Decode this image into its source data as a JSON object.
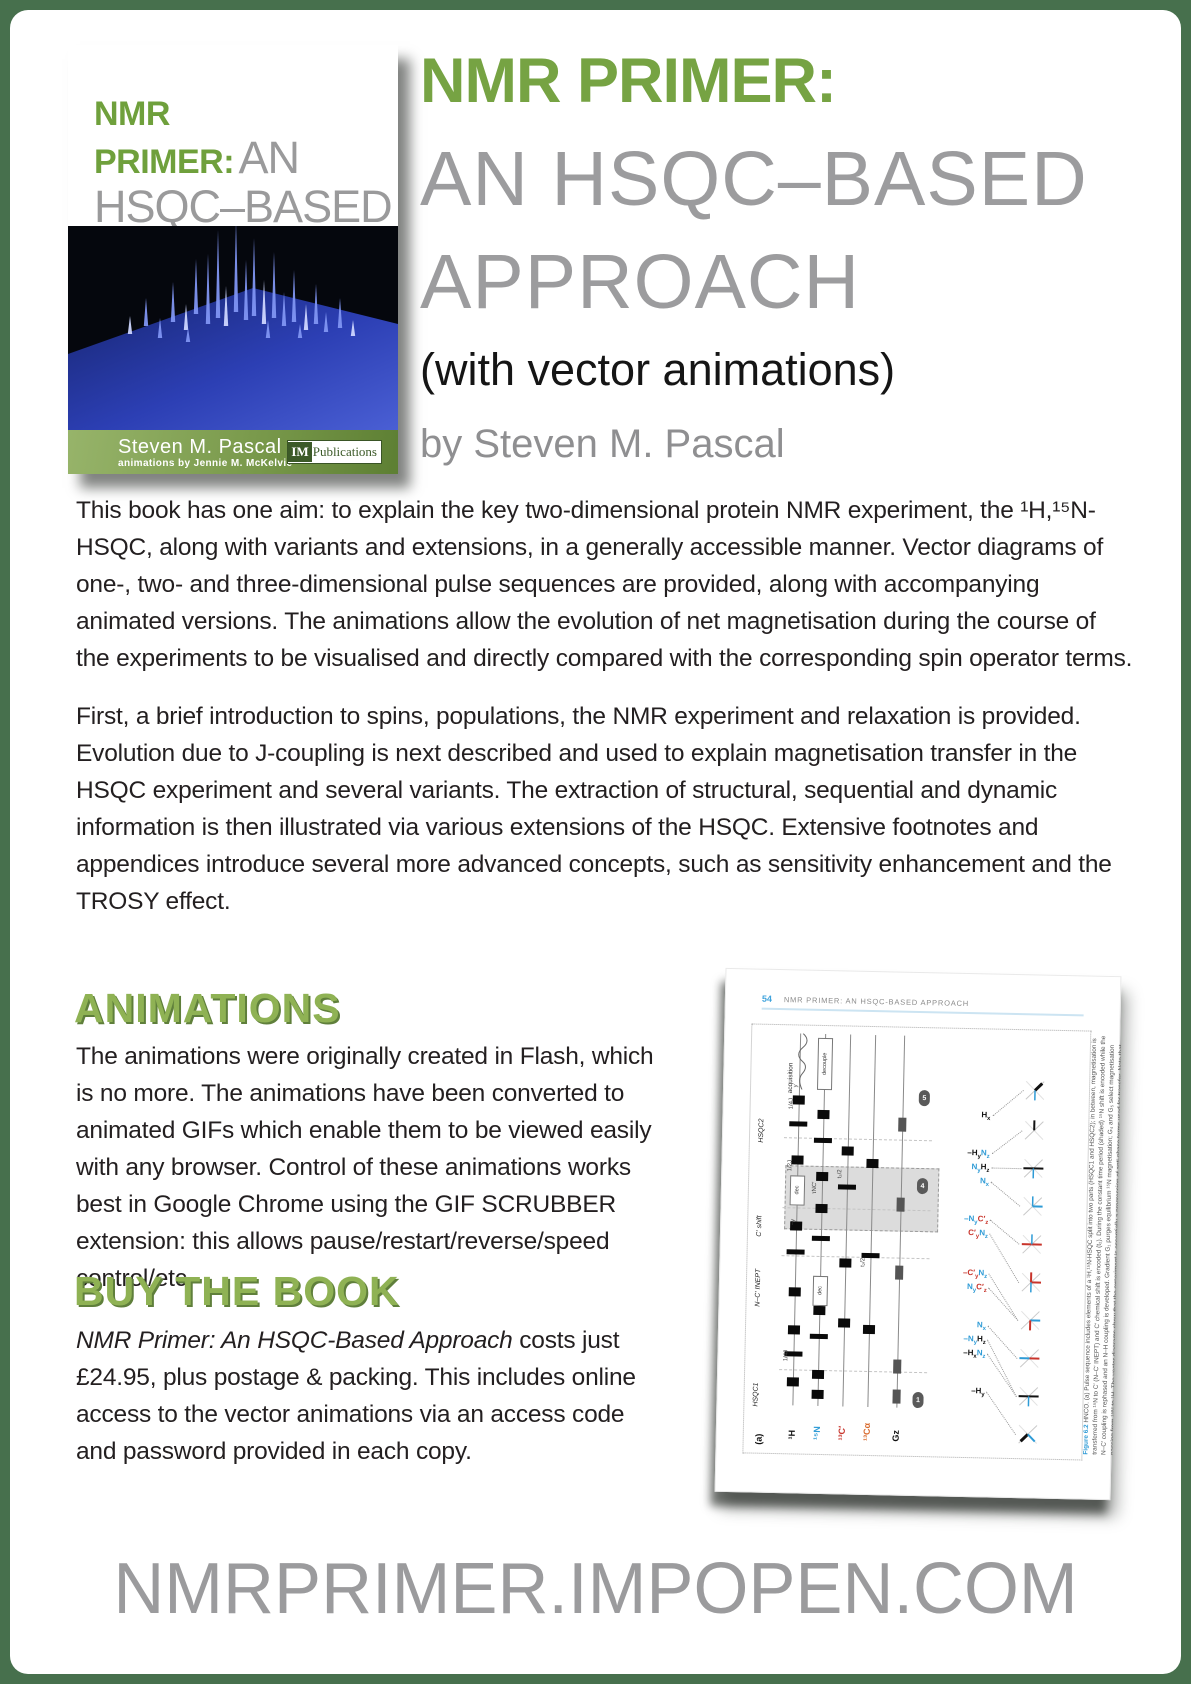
{
  "frame_color": "#47704D",
  "cover": {
    "title_green_1": "NMR",
    "title_green_2": "PRIMER:",
    "title_gray_an": "AN",
    "title_gray_1": "HSQC–BASED",
    "title_gray_2": "APPROACH",
    "subtitle": "WITH VECTOR ANIMATIONS",
    "author": "Steven M. Pascal",
    "credit": "animations by Jennie M. McKelvie",
    "publisher_initials": "IM",
    "publisher_name": "Publications"
  },
  "title_block": {
    "line1": "NMR PRIMER:",
    "line2": "AN HSQC–BASED",
    "line3": "APPROACH",
    "line4": "(with vector animations)",
    "line5": "by Steven M. Pascal"
  },
  "intro_paragraphs": [
    "This book has one aim: to explain the key two-dimensional protein NMR experiment, the ¹H,¹⁵N-HSQC, along with variants and extensions, in a generally accessible manner. Vector diagrams of one-, two- and three-dimensional pulse sequences are provided, along with accompanying animated versions. The animations allow the evolution of net magnetisation during the course of the experiments to be visualised and directly compared with the corresponding spin operator terms.",
    "First, a brief introduction to spins, populations, the NMR experiment and relaxation is provided. Evolution due to J-coupling is next described and used to explain magnetisation transfer in the HSQC experiment and several variants. The extraction of structural, sequential and dynamic information is then illustrated via various extensions of the HSQC. Extensive footnotes and appendices introduce several more advanced concepts, such as sensitivity enhancement and the TROSY effect."
  ],
  "sections": [
    {
      "heading": "ANIMATIONS",
      "body": "The animations were originally created in Flash, which is no more. The animations have been converted to animated GIFs which enable them to be viewed easily with any browser. Control of these animations works best in Google Chrome using the GIF SCRUBBER extension: this allows pause/restart/reverse/speed control/etc."
    },
    {
      "heading": "BUY THE BOOK",
      "body_italic": "NMR Primer: An HSQC-Based Approach",
      "body_rest": " costs just £24.95, plus postage & packing. This includes online access to the vector animations via an access code and password provided in each copy."
    }
  ],
  "page_preview": {
    "page_number": "54",
    "running_head": "NMR PRIMER: AN HSQC-BASED APPROACH",
    "panel_label": "(a)",
    "acquisition_label": "acquisition",
    "decouple_label": "decouple",
    "dec_label": "dec",
    "channels": [
      {
        "label": "¹H",
        "color": "#111111"
      },
      {
        "label": "¹⁵N",
        "color": "#2E9BD6"
      },
      {
        "label": "¹³C′",
        "color": "#C8342B"
      },
      {
        "label": "¹³Cα",
        "color": "#D96B2E"
      },
      {
        "label": "Gz",
        "color": "#111111"
      }
    ],
    "segment_labels": [
      "HSQC2",
      "C′ shift",
      "N–C′ INEPT",
      "HSQC1"
    ],
    "timing_labels": [
      "1/4J",
      "1/2J",
      "τNC′",
      "t₂/2",
      "t₂/2",
      "1/4J",
      "y",
      "−y"
    ],
    "step_badges": [
      "5",
      "4",
      "1"
    ],
    "spin_terms": [
      {
        "parts": [
          {
            "t": "H",
            "s": "x",
            "c": "k"
          }
        ]
      },
      {
        "parts": [
          {
            "t": "–H",
            "s": "y",
            "c": "k"
          },
          {
            "t": "N",
            "s": "z",
            "c": "b"
          }
        ]
      },
      {
        "parts": [
          {
            "t": "N",
            "s": "y",
            "c": "b"
          },
          {
            "t": "H",
            "s": "z",
            "c": "k"
          }
        ]
      },
      {
        "parts": [
          {
            "t": "N",
            "s": "x",
            "c": "b"
          }
        ]
      },
      {
        "parts": [
          {
            "t": "–N",
            "s": "y",
            "c": "b"
          },
          {
            "t": "C′",
            "s": "z",
            "c": "r"
          }
        ]
      },
      {
        "parts": [
          {
            "t": "C′",
            "s": "y",
            "c": "r"
          },
          {
            "t": "N",
            "s": "z",
            "c": "b"
          }
        ]
      },
      {
        "parts": [
          {
            "t": "–C′",
            "s": "y",
            "c": "r"
          },
          {
            "t": "N",
            "s": "z",
            "c": "b"
          }
        ]
      },
      {
        "parts": [
          {
            "t": "N",
            "s": "y",
            "c": "b"
          },
          {
            "t": "C′",
            "s": "z",
            "c": "r"
          }
        ]
      },
      {
        "parts": [
          {
            "t": "N",
            "s": "x",
            "c": "b"
          }
        ]
      },
      {
        "parts": [
          {
            "t": "–N",
            "s": "y",
            "c": "b"
          },
          {
            "t": "H",
            "s": "z",
            "c": "k"
          }
        ]
      },
      {
        "parts": [
          {
            "t": "–H",
            "s": "x",
            "c": "k"
          },
          {
            "t": "N",
            "s": "z",
            "c": "b"
          }
        ]
      },
      {
        "parts": [
          {
            "t": "–H",
            "s": "y",
            "c": "k"
          }
        ]
      }
    ],
    "term_colors": {
      "k": "#111111",
      "b": "#2E9BD6",
      "r": "#C8342B"
    },
    "caption_lead": "Figure 6.2",
    "caption_body": " HNCO. (a) Pulse sequence includes elements of a ¹H,¹⁵N-HSQC split into two parts (HSQC1 and HSQC2); in between, magnetisation is transferred from ¹⁵N to C′ (N–C′ INEPT) and C′ chemical shift is encoded (t₂). During the constant time period (shaded) ¹⁵N shift is encoded while the N–C′ coupling is rephased and an N–H coupling is developed. Gradient G₁ purges equilibrium ¹⁵N magnetisation; G₄ and G₅ select magnetisation passing from ¹⁵N to ¹H. The vector diagrams show that the experiment is essentially a progression of anti-phase terms used for transfer. Note that the two pictured pure Nx terms never actually exist: they are intermediate calculation terms, considering evolution due to only one coupling; the following term in each case represents evolution due also to the complementary coupling."
  },
  "footer_url": "NMRPRIMER.IMPOPEN.COM"
}
